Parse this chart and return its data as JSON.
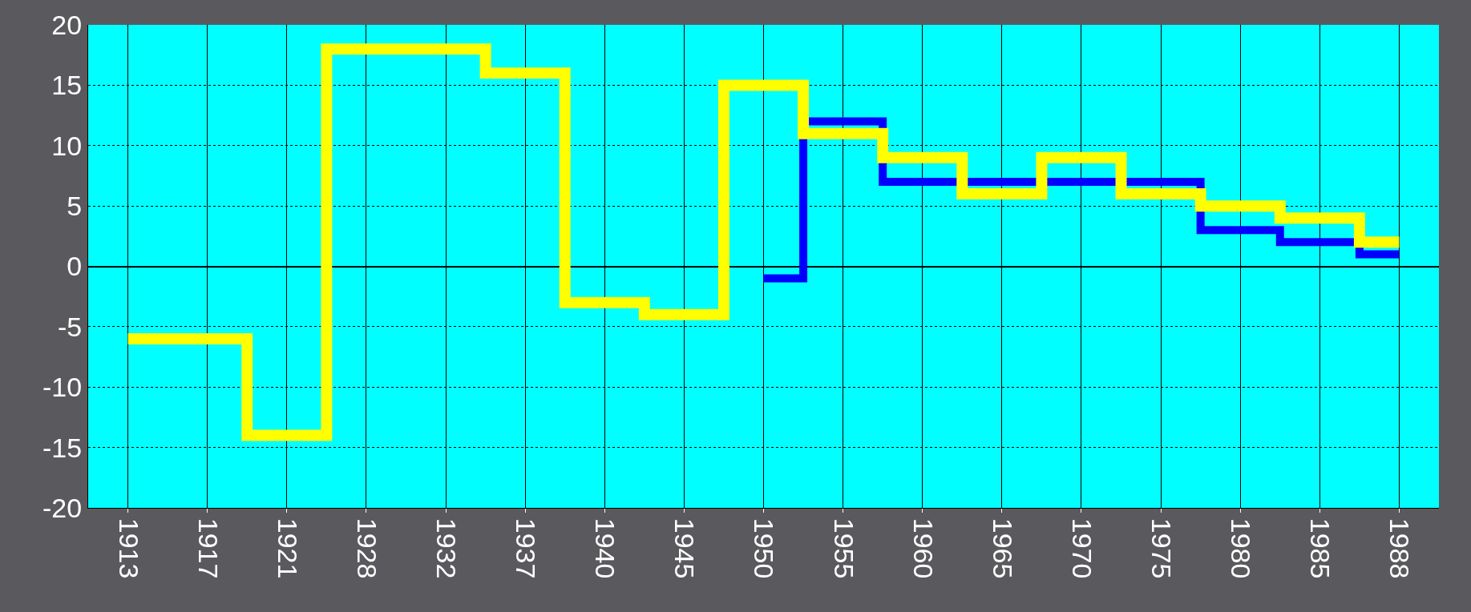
{
  "chart_data": {
    "type": "step",
    "categories": [
      "1913",
      "1917",
      "1921",
      "1928",
      "1932",
      "1937",
      "1940",
      "1945",
      "1950",
      "1955",
      "1960",
      "1965",
      "1970",
      "1975",
      "1980",
      "1985",
      "1988"
    ],
    "series": [
      {
        "color": "#ffff00",
        "values": [
          -6,
          -6,
          -14,
          18,
          18,
          16,
          -3,
          -4,
          15,
          11,
          9,
          6,
          9,
          6,
          5,
          4,
          2
        ]
      },
      {
        "color": "#0000ff",
        "values": [
          null,
          null,
          null,
          null,
          null,
          null,
          null,
          null,
          -1,
          12,
          7,
          7,
          7,
          7,
          3,
          2,
          1
        ]
      }
    ],
    "ylim": [
      -20,
      20
    ],
    "yticks": [
      -20,
      -15,
      -10,
      -5,
      0,
      5,
      10,
      15,
      20
    ],
    "grid": true
  }
}
